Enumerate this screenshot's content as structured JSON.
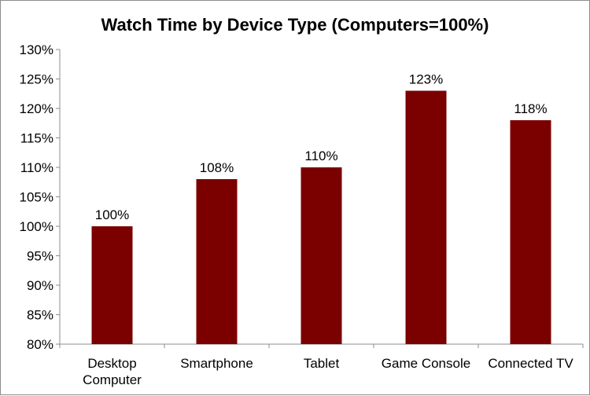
{
  "chart_data": {
    "type": "bar",
    "title": "Watch Time by Device Type (Computers=100%)",
    "categories": [
      [
        "Desktop",
        "Computer"
      ],
      [
        "Smartphone"
      ],
      [
        "Tablet"
      ],
      [
        "Game Console"
      ],
      [
        "Connected TV"
      ]
    ],
    "values": [
      100,
      108,
      110,
      123,
      118
    ],
    "data_labels": [
      "100%",
      "108%",
      "110%",
      "123%",
      "118%"
    ],
    "ylim": [
      80,
      130
    ],
    "ytick_step": 5,
    "ytick_labels": [
      "80%",
      "85%",
      "90%",
      "95%",
      "100%",
      "105%",
      "110%",
      "115%",
      "120%",
      "125%",
      "130%"
    ],
    "xlabel": "",
    "ylabel": "",
    "grid": false,
    "legend": "none",
    "bar_color": "#7b0000",
    "axis_color": "#8c8c8c"
  }
}
